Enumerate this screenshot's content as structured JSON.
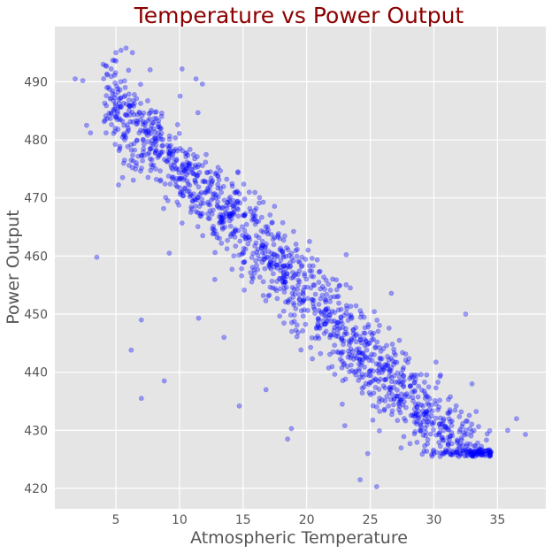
{
  "colors": {
    "background": "#E5E5E5",
    "grid": "#FFFFFF",
    "points": "#0000FF",
    "title": "#8B0000",
    "labels": "#555555"
  },
  "chart_data": {
    "type": "scatter",
    "title": "Temperature vs Power Output",
    "xlabel": "Atmospheric Temperature",
    "ylabel": "Power Output",
    "xlim": [
      0.2,
      38.8
    ],
    "ylim": [
      416.5,
      499.5
    ],
    "xticks": [
      5,
      10,
      15,
      20,
      25,
      30,
      35
    ],
    "yticks": [
      420,
      430,
      440,
      450,
      460,
      470,
      480,
      490
    ],
    "grid": true,
    "legend": "none",
    "point_alpha": 0.35,
    "trend": {
      "intercept": 497.0,
      "slope": -2.2,
      "noise_sd": 4.0
    },
    "x_range_bulk": [
      4.0,
      34.5
    ],
    "n_bulk_points": 1500,
    "floor_clip": 425.5,
    "outliers": [
      {
        "x": 3.5,
        "y": 459.8
      },
      {
        "x": 6.2,
        "y": 443.8
      },
      {
        "x": 7.0,
        "y": 449.0
      },
      {
        "x": 7.0,
        "y": 435.5
      },
      {
        "x": 8.8,
        "y": 438.5
      },
      {
        "x": 9.2,
        "y": 460.5
      },
      {
        "x": 11.5,
        "y": 449.3
      },
      {
        "x": 13.5,
        "y": 446.0
      },
      {
        "x": 14.7,
        "y": 434.2
      },
      {
        "x": 16.8,
        "y": 437.0
      },
      {
        "x": 18.5,
        "y": 428.5
      },
      {
        "x": 18.8,
        "y": 430.3
      },
      {
        "x": 22.8,
        "y": 434.5
      },
      {
        "x": 23.0,
        "y": 430.8
      },
      {
        "x": 23.2,
        "y": 441.0
      },
      {
        "x": 24.2,
        "y": 421.5
      },
      {
        "x": 24.8,
        "y": 426.0
      },
      {
        "x": 25.5,
        "y": 420.3
      },
      {
        "x": 32.5,
        "y": 450.0
      },
      {
        "x": 33.0,
        "y": 438.0
      },
      {
        "x": 35.8,
        "y": 430.0
      },
      {
        "x": 36.5,
        "y": 432.0
      },
      {
        "x": 37.2,
        "y": 429.3
      },
      {
        "x": 1.8,
        "y": 490.5
      },
      {
        "x": 2.4,
        "y": 490.2
      },
      {
        "x": 2.7,
        "y": 482.5
      },
      {
        "x": 3.0,
        "y": 481.2
      },
      {
        "x": 4.0,
        "y": 493.0
      },
      {
        "x": 5.0,
        "y": 495.0
      },
      {
        "x": 5.4,
        "y": 495.4
      },
      {
        "x": 5.8,
        "y": 495.8
      },
      {
        "x": 6.3,
        "y": 495.0
      },
      {
        "x": 10.2,
        "y": 492.2
      },
      {
        "x": 11.3,
        "y": 490.5
      },
      {
        "x": 11.8,
        "y": 489.6
      }
    ]
  }
}
